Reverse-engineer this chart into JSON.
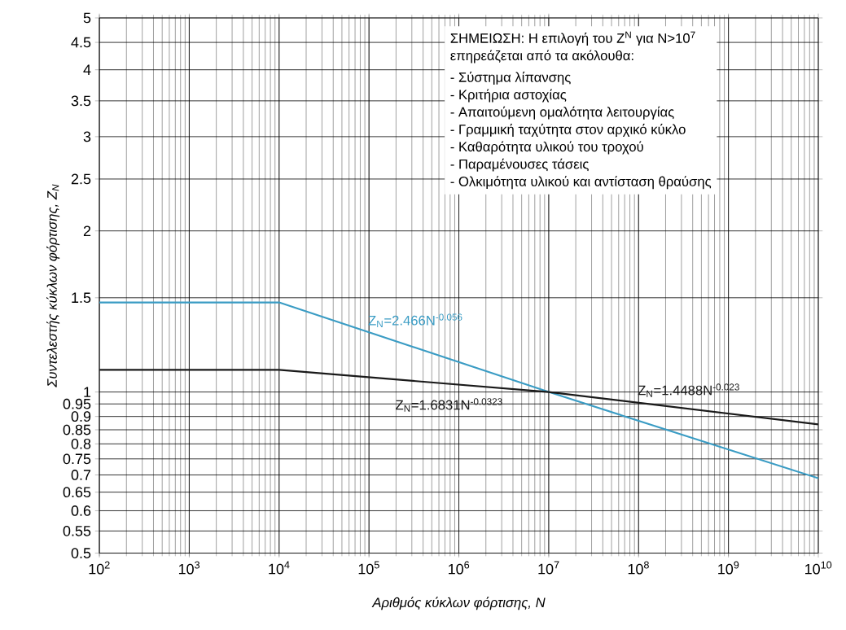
{
  "chart_data": {
    "type": "line",
    "xlabel": "Αριθμός κύκλων φόρτισης, N",
    "ylabel": "Συντελεστής κύκλων φόρτισης, Z$_{N}$",
    "log": "xy",
    "grid": true,
    "xlim": [
      100,
      10000000000
    ],
    "ylim": [
      0.5,
      5
    ],
    "xticks": [
      {
        "value": 100,
        "label": "10$^{2}$"
      },
      {
        "value": 1000,
        "label": "10$^{3}$"
      },
      {
        "value": 10000,
        "label": "10$^{4}$"
      },
      {
        "value": 100000,
        "label": "10$^{5}$"
      },
      {
        "value": 1000000,
        "label": "10$^{6}$"
      },
      {
        "value": 10000000,
        "label": "10$^{7}$"
      },
      {
        "value": 100000000,
        "label": "10$^{8}$"
      },
      {
        "value": 1000000000,
        "label": "10$^{9}$"
      },
      {
        "value": 10000000000,
        "label": "10$^{10}$"
      }
    ],
    "yticks": [
      0.5,
      0.55,
      0.6,
      0.65,
      0.7,
      0.75,
      0.8,
      0.85,
      0.9,
      0.95,
      1,
      1.5,
      2,
      2.5,
      3,
      3.5,
      4,
      4.5,
      5
    ],
    "x": [
      100,
      10000,
      10000000,
      10000000000
    ],
    "series": [
      {
        "color": "#3a9cc4",
        "values": [
          1.47,
          1.47,
          1.0,
          0.69
        ]
      },
      {
        "color": "#1a1a1a",
        "values": [
          1.1,
          1.1,
          1.0,
          0.87
        ]
      }
    ],
    "annotations": [
      "ΣΗΜΕΙΩΣΗ: Η επιλογή του Z$^{N}$  για N>10$^{7}$",
      "επηρεάζεται από τα ακόλουθα:",
      "- Σύστημα λίπανσης",
      "- Κριτήρια αστοχίας",
      "- Απαιτούμενη ομαλότητα λειτουργίας",
      "- Γραμμική ταχύτητα στον αρχικό κύκλο",
      "- Καθαρότητα υλικού του τροχού",
      "- Παραμένουσες τάσεις",
      "- Ολκιμότητα υλικού και αντίσταση θραύσης",
      {
        "text": "Z$_{N}$=2.466N$^{-0.056}$",
        "x": 100000,
        "y": 1.29
      },
      {
        "text": "Z$_{N}$=1.4488N$^{-0.023}$",
        "x": 100000000,
        "y": 0.955
      },
      {
        "text": "Z$_{N}$=1.6831N$^{-0.0323}$",
        "x": 170000,
        "y": 1.055
      }
    ]
  }
}
